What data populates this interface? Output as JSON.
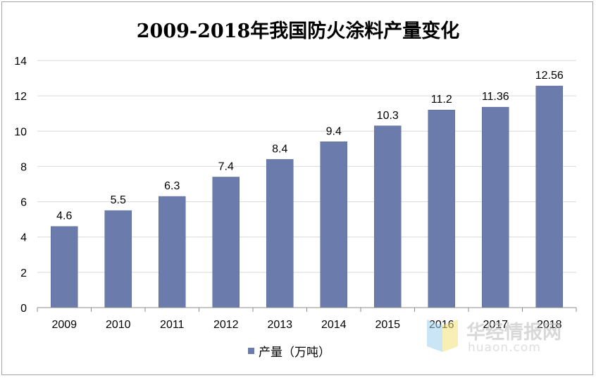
{
  "chart_data": {
    "type": "bar",
    "title": "2009-2018年我国防火涂料产量变化",
    "categories": [
      "2009",
      "2010",
      "2011",
      "2012",
      "2013",
      "2014",
      "2015",
      "2016",
      "2017",
      "2018"
    ],
    "series": [
      {
        "name": "产量（万吨）",
        "values": [
          4.6,
          5.5,
          6.3,
          7.4,
          8.4,
          9.4,
          10.3,
          11.2,
          11.36,
          12.56
        ]
      }
    ],
    "data_labels": [
      "4.6",
      "5.5",
      "6.3",
      "7.4",
      "8.4",
      "9.4",
      "10.3",
      "11.2",
      "11.36",
      "12.56"
    ],
    "y_ticks": [
      "0",
      "2",
      "4",
      "6",
      "8",
      "10",
      "12",
      "14"
    ],
    "ylim": [
      0,
      14
    ],
    "grid": true,
    "legend_position": "bottom",
    "bar_color": "#6b7bab"
  },
  "watermark": {
    "text_cn": "华经情报网",
    "text_en": "huaon.com"
  }
}
